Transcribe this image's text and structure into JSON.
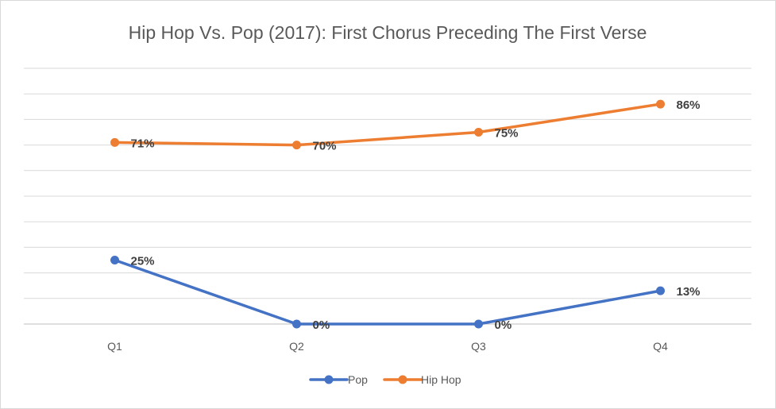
{
  "chart_data": {
    "type": "line",
    "title": "Hip Hop Vs. Pop (2017): First Chorus Preceding The First Verse",
    "xlabel": "",
    "ylabel": "",
    "categories": [
      "Q1",
      "Q2",
      "Q3",
      "Q4"
    ],
    "ylim": [
      0,
      1
    ],
    "y_axis_labels_visible": false,
    "grid": true,
    "legend": "bottom",
    "series": [
      {
        "name": "Pop",
        "color": "#4472c4",
        "values": [
          0.25,
          0,
          0,
          0.13
        ],
        "labels": [
          "25%",
          "0%",
          "0%",
          "13%"
        ]
      },
      {
        "name": "Hip Hop",
        "color": "#ed7d31",
        "values": [
          0.71,
          0.7,
          0.75,
          0.86
        ],
        "labels": [
          "71%",
          "70%",
          "75%",
          "86%"
        ]
      }
    ]
  }
}
